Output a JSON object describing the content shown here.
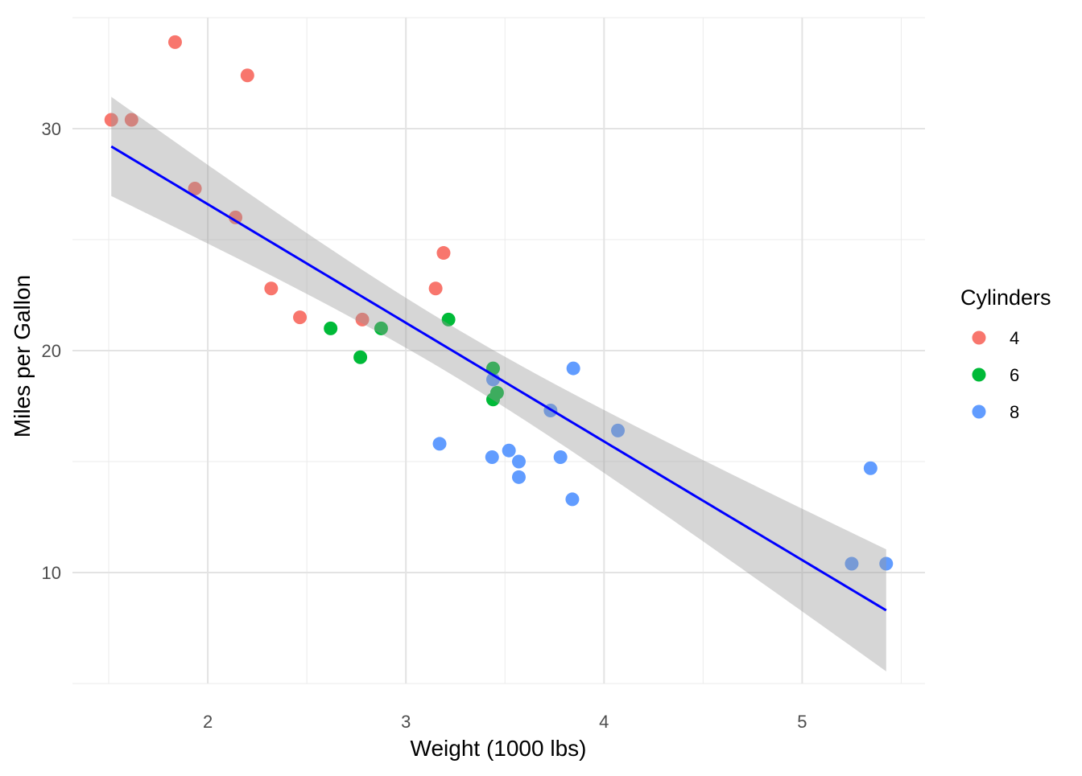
{
  "chart_data": {
    "type": "scatter",
    "xlabel": "Weight (1000 lbs)",
    "ylabel": "Miles per Gallon",
    "xlim": [
      1.317,
      5.62
    ],
    "ylim": [
      5,
      35
    ],
    "x_ticks": [
      2,
      3,
      4,
      5
    ],
    "y_ticks": [
      10,
      20,
      30
    ],
    "grid": true,
    "legend": {
      "title": "Cylinders",
      "placement": "right",
      "entries": [
        "4",
        "6",
        "8"
      ]
    },
    "colors": {
      "4": "#F8766D",
      "6": "#00BA38",
      "8": "#619CFF",
      "fit_line": "#0000FF",
      "band": "#999999"
    },
    "smooth": {
      "method": "lm",
      "confidence_level": 0.95
    },
    "points": [
      {
        "wt": 2.62,
        "mpg": 21.0,
        "cyl": "6"
      },
      {
        "wt": 2.875,
        "mpg": 21.0,
        "cyl": "6"
      },
      {
        "wt": 2.32,
        "mpg": 22.8,
        "cyl": "4"
      },
      {
        "wt": 3.215,
        "mpg": 21.4,
        "cyl": "6"
      },
      {
        "wt": 3.44,
        "mpg": 18.7,
        "cyl": "8"
      },
      {
        "wt": 3.46,
        "mpg": 18.1,
        "cyl": "6"
      },
      {
        "wt": 3.57,
        "mpg": 14.3,
        "cyl": "8"
      },
      {
        "wt": 3.19,
        "mpg": 24.4,
        "cyl": "4"
      },
      {
        "wt": 3.15,
        "mpg": 22.8,
        "cyl": "4"
      },
      {
        "wt": 3.44,
        "mpg": 19.2,
        "cyl": "6"
      },
      {
        "wt": 3.44,
        "mpg": 17.8,
        "cyl": "6"
      },
      {
        "wt": 4.07,
        "mpg": 16.4,
        "cyl": "8"
      },
      {
        "wt": 3.73,
        "mpg": 17.3,
        "cyl": "8"
      },
      {
        "wt": 3.78,
        "mpg": 15.2,
        "cyl": "8"
      },
      {
        "wt": 5.25,
        "mpg": 10.4,
        "cyl": "8"
      },
      {
        "wt": 5.424,
        "mpg": 10.4,
        "cyl": "8"
      },
      {
        "wt": 5.345,
        "mpg": 14.7,
        "cyl": "8"
      },
      {
        "wt": 2.2,
        "mpg": 32.4,
        "cyl": "4"
      },
      {
        "wt": 1.615,
        "mpg": 30.4,
        "cyl": "4"
      },
      {
        "wt": 1.835,
        "mpg": 33.9,
        "cyl": "4"
      },
      {
        "wt": 2.465,
        "mpg": 21.5,
        "cyl": "4"
      },
      {
        "wt": 3.52,
        "mpg": 15.5,
        "cyl": "8"
      },
      {
        "wt": 3.435,
        "mpg": 15.2,
        "cyl": "8"
      },
      {
        "wt": 3.84,
        "mpg": 13.3,
        "cyl": "8"
      },
      {
        "wt": 3.845,
        "mpg": 19.2,
        "cyl": "8"
      },
      {
        "wt": 1.935,
        "mpg": 27.3,
        "cyl": "4"
      },
      {
        "wt": 2.14,
        "mpg": 26.0,
        "cyl": "4"
      },
      {
        "wt": 1.513,
        "mpg": 30.4,
        "cyl": "4"
      },
      {
        "wt": 3.17,
        "mpg": 15.8,
        "cyl": "8"
      },
      {
        "wt": 2.77,
        "mpg": 19.7,
        "cyl": "6"
      },
      {
        "wt": 3.57,
        "mpg": 15.0,
        "cyl": "8"
      },
      {
        "wt": 2.78,
        "mpg": 21.4,
        "cyl": "4"
      }
    ]
  }
}
